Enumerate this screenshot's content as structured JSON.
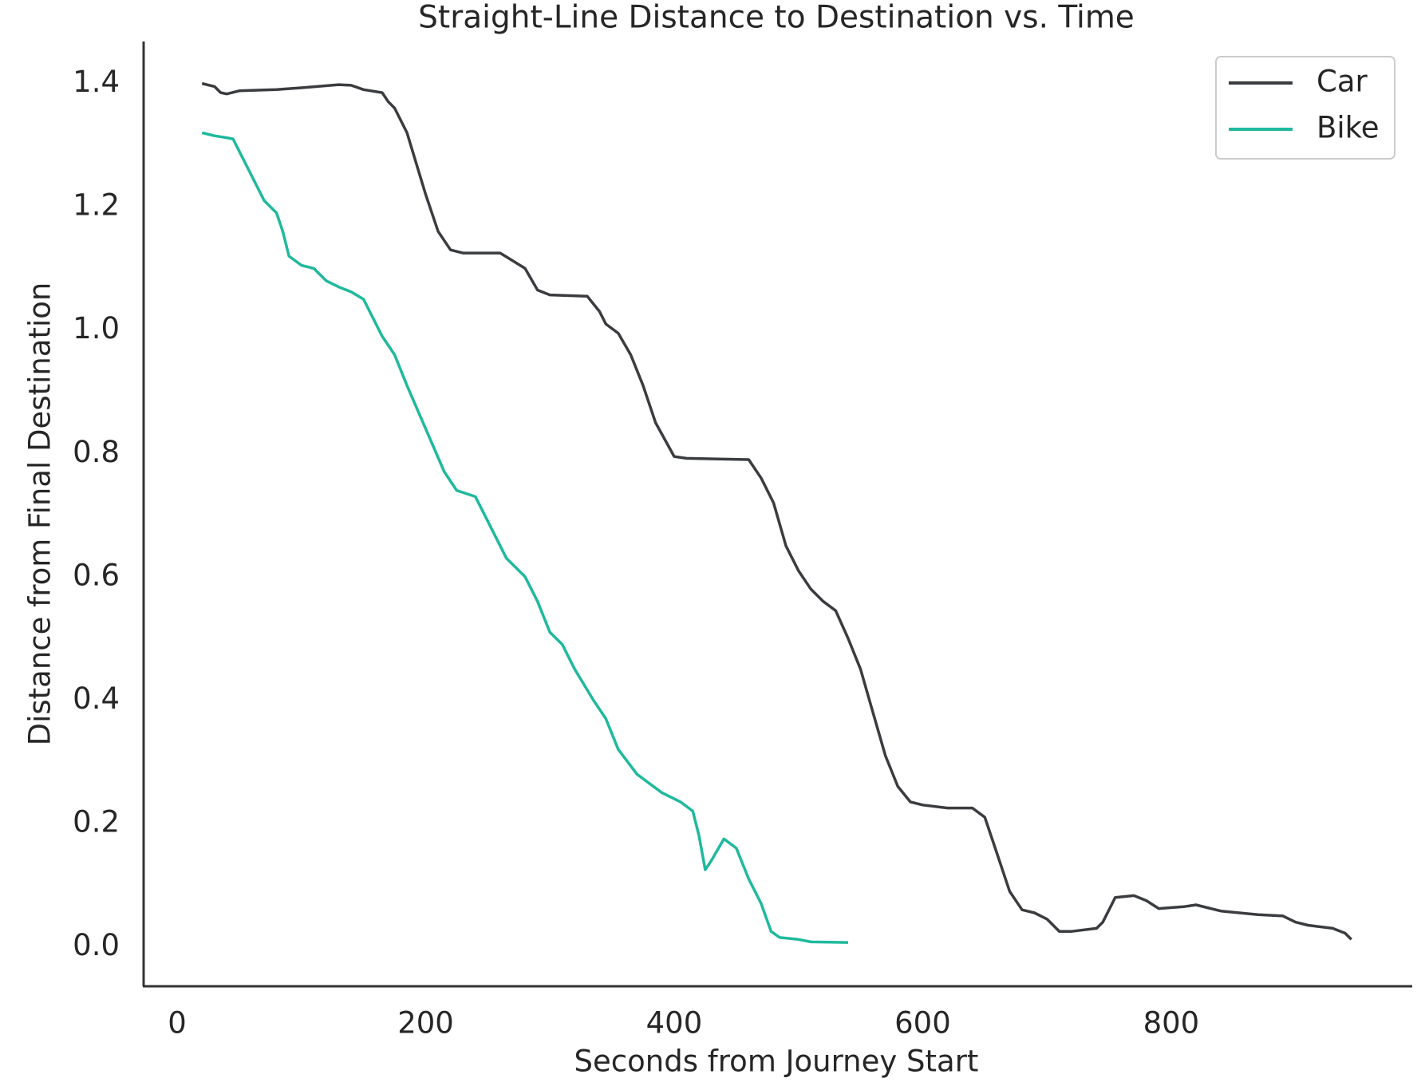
{
  "chart_data": {
    "type": "line",
    "title": "Straight-Line Distance to Destination vs. Time",
    "xlabel": "Seconds from Journey Start",
    "ylabel": "Distance from Final Destination",
    "xlim": [
      -27,
      994
    ],
    "ylim": [
      -0.064,
      1.468
    ],
    "xticks": [
      0,
      200,
      400,
      600,
      800
    ],
    "yticks": [
      {
        "value": 0,
        "label": "0.0"
      },
      0.2,
      0.4,
      0.6,
      0.8,
      {
        "value": 1,
        "label": "1.0"
      },
      1.2,
      1.4
    ],
    "grid": false,
    "legend": "upper right",
    "series": [
      {
        "name": "Car",
        "color": "#3a3c3f",
        "x": [
          20,
          30,
          35,
          40,
          50,
          80,
          100,
          130,
          140,
          150,
          165,
          170,
          175,
          185,
          200,
          210,
          220,
          230,
          260,
          280,
          290,
          300,
          330,
          340,
          345,
          355,
          365,
          375,
          385,
          400,
          410,
          460,
          470,
          480,
          490,
          500,
          510,
          520,
          530,
          540,
          550,
          560,
          570,
          580,
          590,
          600,
          620,
          640,
          650,
          660,
          670,
          680,
          690,
          700,
          710,
          720,
          740,
          745,
          755,
          770,
          780,
          790,
          810,
          820,
          840,
          870,
          890,
          900,
          910,
          930,
          940,
          945
        ],
        "values": [
          1.4,
          1.395,
          1.385,
          1.383,
          1.388,
          1.39,
          1.393,
          1.398,
          1.397,
          1.39,
          1.385,
          1.37,
          1.36,
          1.32,
          1.22,
          1.16,
          1.13,
          1.125,
          1.125,
          1.1,
          1.065,
          1.057,
          1.055,
          1.03,
          1.01,
          0.995,
          0.96,
          0.91,
          0.85,
          0.795,
          0.792,
          0.79,
          0.76,
          0.72,
          0.65,
          0.61,
          0.58,
          0.56,
          0.545,
          0.5,
          0.45,
          0.38,
          0.31,
          0.26,
          0.235,
          0.23,
          0.225,
          0.225,
          0.21,
          0.15,
          0.09,
          0.06,
          0.055,
          0.045,
          0.025,
          0.025,
          0.03,
          0.04,
          0.08,
          0.083,
          0.075,
          0.062,
          0.065,
          0.068,
          0.058,
          0.052,
          0.05,
          0.04,
          0.035,
          0.03,
          0.022,
          0.012
        ]
      },
      {
        "name": "Bike",
        "color": "#1fb99d",
        "x": [
          20,
          30,
          40,
          45,
          50,
          60,
          70,
          80,
          85,
          90,
          100,
          110,
          120,
          130,
          140,
          150,
          155,
          165,
          175,
          185,
          200,
          215,
          225,
          240,
          250,
          265,
          280,
          290,
          300,
          310,
          320,
          335,
          345,
          355,
          370,
          390,
          405,
          415,
          420,
          425,
          430,
          440,
          450,
          460,
          470,
          478,
          485,
          500,
          510,
          540
        ],
        "values": [
          1.32,
          1.315,
          1.312,
          1.31,
          1.29,
          1.25,
          1.21,
          1.19,
          1.16,
          1.12,
          1.105,
          1.1,
          1.08,
          1.07,
          1.062,
          1.05,
          1.03,
          0.99,
          0.96,
          0.91,
          0.84,
          0.77,
          0.74,
          0.73,
          0.69,
          0.63,
          0.6,
          0.56,
          0.51,
          0.49,
          0.45,
          0.4,
          0.37,
          0.32,
          0.28,
          0.25,
          0.235,
          0.22,
          0.18,
          0.125,
          0.14,
          0.175,
          0.16,
          0.11,
          0.07,
          0.025,
          0.015,
          0.012,
          0.008,
          0.007
        ]
      }
    ]
  }
}
